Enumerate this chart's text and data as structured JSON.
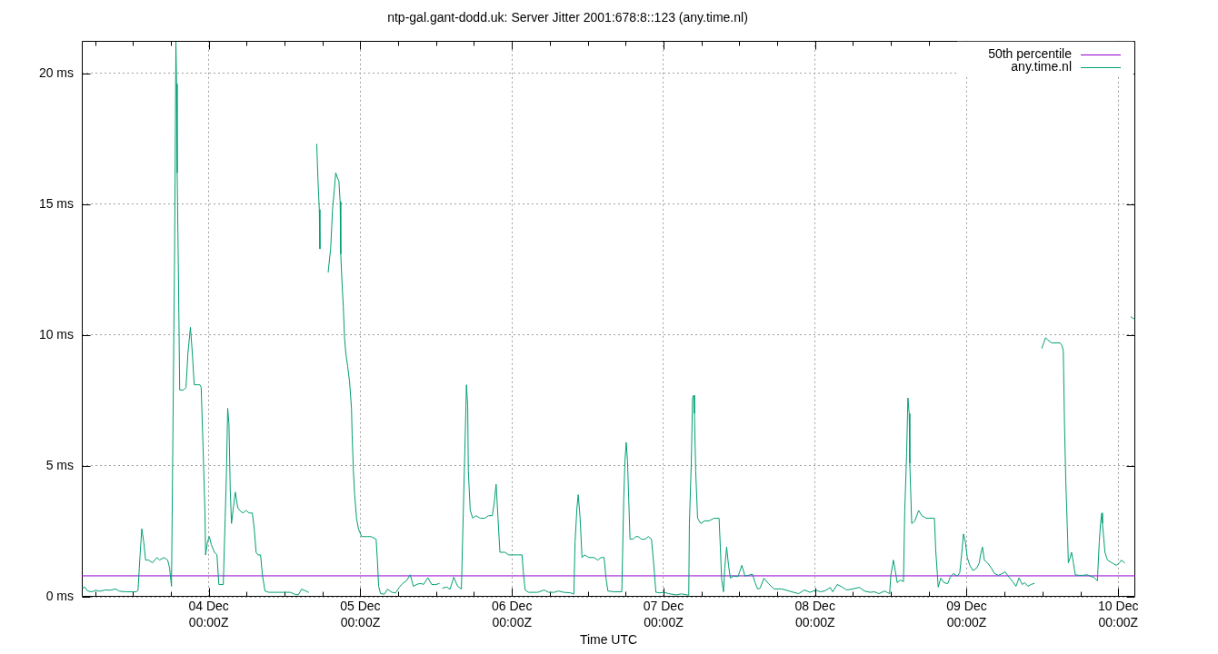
{
  "chart_data": {
    "type": "line",
    "title": "ntp-gal.gant-dodd.uk: Server Jitter 2001:678:8::123 (any.time.nl)",
    "xlabel": "Time UTC",
    "xlim": [
      "--12-03T03:54",
      "--12-10T02:42"
    ],
    "xticks": [
      {
        "value": "--12-03T06:00",
        "label": null
      },
      {
        "value": "--12-03T12:00",
        "label": null
      },
      {
        "value": "--12-03T18:00",
        "label": null
      },
      {
        "value": "--12-04T00:00",
        "label": "04 Dec\n00:00Z"
      },
      {
        "value": "--12-04T06:00",
        "label": null
      },
      {
        "value": "--12-04T12:00",
        "label": null
      },
      {
        "value": "--12-04T18:00",
        "label": null
      },
      {
        "value": "--12-05T00:00",
        "label": "05 Dec\n00:00Z"
      },
      {
        "value": "--12-05T06:00",
        "label": null
      },
      {
        "value": "--12-05T12:00",
        "label": null
      },
      {
        "value": "--12-05T18:00",
        "label": null
      },
      {
        "value": "--12-06T00:00",
        "label": "06 Dec\n00:00Z"
      },
      {
        "value": "--12-06T06:00",
        "label": null
      },
      {
        "value": "--12-06T12:00",
        "label": null
      },
      {
        "value": "--12-06T18:00",
        "label": null
      },
      {
        "value": "--12-07T00:00",
        "label": "07 Dec\n00:00Z"
      },
      {
        "value": "--12-07T06:00",
        "label": null
      },
      {
        "value": "--12-07T12:00",
        "label": null
      },
      {
        "value": "--12-07T18:00",
        "label": null
      },
      {
        "value": "--12-08T00:00",
        "label": "08 Dec\n00:00Z"
      },
      {
        "value": "--12-08T06:00",
        "label": null
      },
      {
        "value": "--12-08T12:00",
        "label": null
      },
      {
        "value": "--12-08T18:00",
        "label": null
      },
      {
        "value": "--12-09T00:00",
        "label": "09 Dec\n00:00Z"
      },
      {
        "value": "--12-09T06:00",
        "label": null
      },
      {
        "value": "--12-09T12:00",
        "label": null
      },
      {
        "value": "--12-09T18:00",
        "label": null
      },
      {
        "value": "--12-10T00:00",
        "label": "10 Dec\n00:00Z"
      }
    ],
    "ylim": [
      0,
      21.25
    ],
    "yticks": [
      {
        "value": 0,
        "label": "0 ms"
      },
      {
        "value": 5,
        "label": "5 ms"
      },
      {
        "value": 10,
        "label": "10 ms"
      },
      {
        "value": 15,
        "label": "15 ms"
      },
      {
        "value": 20,
        "label": "20 ms"
      }
    ],
    "grid": true,
    "legend": "top right",
    "series": [
      {
        "name": "50th percentile",
        "color": "#9400d3",
        "x": [
          "--12-03T03:54",
          "--12-10T02:42"
        ],
        "values": [
          0.8,
          0.8
        ]
      },
      {
        "name": "any.time.nl",
        "color": "#009e73",
        "x": [
          "--12-03T04:00",
          "--12-03T04:24",
          "--12-03T04:48",
          "--12-03T05:30",
          "--12-03T06:06",
          "--12-03T06:42",
          "--12-03T07:36",
          "--12-03T08:24",
          "--12-03T09:12",
          "--12-03T09:54",
          "--12-03T11:00",
          "--12-03T12:30",
          "--12-03T12:48",
          "--12-03T13:06",
          "--12-03T13:24",
          "--12-03T13:42",
          "--12-03T14:00",
          "--12-03T14:30",
          "--12-03T15:06",
          "--12-03T15:48",
          "--12-03T16:12",
          "--12-03T16:54",
          "--12-03T17:30",
          "--12-03T17:48",
          "--12-03T18:06",
          "--12-03T18:12",
          "--12-03T18:24",
          "--12-03T18:36",
          "--12-03T18:48",
          "--12-03T18:54",
          "--12-03T19:00",
          "--12-03T19:12",
          "--12-03T19:24",
          "--12-03T20:00",
          "--12-03T20:24",
          "--12-03T20:42",
          "--12-03T21:06",
          "--12-03T21:24",
          "--12-03T21:42",
          "--12-03T22:36",
          "--12-03T22:48",
          "--12-03T23:06",
          "--12-03T23:24",
          "--12-03T23:30",
          "--12-03T23:48",
          "--12-04T00:06",
          "--12-04T00:24",
          "--12-04T00:54",
          "--12-04T01:18",
          "--12-04T01:36",
          "--12-04T02:18",
          "--12-04T02:36",
          "--12-04T02:48",
          "--12-04T03:00",
          "--12-04T03:12",
          "--12-04T03:24",
          "--12-04T03:36",
          "--12-04T03:54",
          "--12-04T04:12",
          "--12-04T04:36",
          "--12-04T04:54",
          "--12-04T05:24",
          "--12-04T05:54",
          "--12-04T06:24",
          "--12-04T06:54",
          "--12-04T07:12",
          "--12-04T07:30",
          "--12-04T07:48",
          "--12-04T08:12",
          "--12-04T08:30",
          "--12-04T08:54",
          "--12-04T09:30",
          "--12-04T10:36",
          "--12-04T12:54",
          "--12-04T13:48",
          "--12-04T14:12",
          "--12-04T14:42",
          "--12-04T15:12",
          "--12-04T15:48",
          "--12-04T16:24",
          "--12-04T17:06",
          "--12-04T17:18",
          "--12-04T17:30",
          "--12-04T17:36",
          "--12-04T18:12",
          "--12-04T18:54",
          "--12-04T19:18",
          "--12-04T19:36",
          "--12-04T19:54",
          "--12-04T20:06",
          "--12-04T20:24",
          "--12-04T20:36",
          "--12-04T20:48",
          "--12-04T20:54",
          "--12-04T21:06",
          "--12-04T21:18",
          "--12-04T21:30",
          "--12-04T21:42",
          "--12-04T22:00",
          "--12-04T22:18",
          "--12-04T22:36",
          "--12-04T22:42",
          "--12-04T22:54",
          "--12-04T23:06",
          "--12-04T23:24",
          "--12-04T23:42",
          "--12-05T00:12",
          "--12-05T01:00",
          "--12-05T01:42",
          "--12-05T02:30",
          "--12-05T02:42",
          "--12-05T02:54",
          "--12-05T03:12",
          "--12-05T03:48",
          "--12-05T04:18",
          "--12-05T05:00",
          "--12-05T05:36",
          "--12-05T06:12",
          "--12-05T06:42",
          "--12-05T07:18",
          "--12-05T07:54",
          "--12-05T08:24",
          "--12-05T09:00",
          "--12-05T09:36",
          "--12-05T10:00",
          "--12-05T10:42",
          "--12-05T11:18",
          "--12-05T11:54",
          "--12-05T12:30",
          "--12-05T12:42",
          "--12-05T13:00",
          "--12-05T13:42",
          "--12-05T14:12",
          "--12-05T14:48",
          "--12-05T15:24",
          "--12-05T16:00",
          "--12-05T16:18",
          "--12-05T16:30",
          "--12-05T16:48",
          "--12-05T17:00",
          "--12-05T17:06",
          "--12-05T17:24",
          "--12-05T17:48",
          "--12-05T18:18",
          "--12-05T19:00",
          "--12-05T19:42",
          "--12-05T20:18",
          "--12-05T20:54",
          "--12-05T21:12",
          "--12-05T21:30",
          "--12-05T21:48",
          "--12-05T22:06",
          "--12-05T22:30",
          "--12-05T22:54",
          "--12-05T23:30",
          "--12-06T00:12",
          "--12-06T01:00",
          "--12-06T01:36",
          "--12-06T01:48",
          "--12-06T02:06",
          "--12-06T02:36",
          "--12-06T04:06",
          "--12-06T05:06",
          "--12-06T05:48",
          "--12-06T06:42",
          "--12-06T07:24",
          "--12-06T08:12",
          "--12-06T09:18",
          "--12-06T09:48",
          "--12-06T10:00",
          "--12-06T10:18",
          "--12-06T10:30",
          "--12-06T10:48",
          "--12-06T11:06",
          "--12-06T11:30",
          "--12-06T12:12",
          "--12-06T13:00",
          "--12-06T13:36",
          "--12-06T14:06",
          "--12-06T14:36",
          "--12-06T14:54",
          "--12-06T15:12",
          "--12-06T16:12",
          "--12-06T17:24",
          "--12-06T17:42",
          "--12-06T17:54",
          "--12-06T18:06",
          "--12-06T18:18",
          "--12-06T18:30",
          "--12-06T18:42",
          "--12-06T19:12",
          "--12-06T19:36",
          "--12-06T20:00",
          "--12-06T20:30",
          "--12-06T21:06",
          "--12-06T21:36",
          "--12-06T22:06",
          "--12-06T22:24",
          "--12-06T22:48",
          "--12-06T23:24",
          "--12-07T00:06",
          "--12-07T00:48",
          "--12-07T02:00",
          "--12-07T02:48",
          "--12-07T04:00",
          "--12-07T04:06",
          "--12-07T04:24",
          "--12-07T04:36",
          "--12-07T04:48",
          "--12-07T04:54",
          "--12-07T05:06",
          "--12-07T05:24",
          "--12-07T05:54",
          "--12-07T06:30",
          "--12-07T07:12",
          "--12-07T08:00",
          "--12-07T08:48",
          "--12-07T09:00",
          "--12-07T09:12",
          "--12-07T09:30",
          "--12-07T09:42",
          "--12-07T10:00",
          "--12-07T10:18",
          "--12-07T10:36",
          "--12-07T11:06",
          "--12-07T11:48",
          "--12-07T12:24",
          "--12-07T12:54",
          "--12-07T13:24",
          "--12-07T14:06",
          "--12-07T14:30",
          "--12-07T14:54",
          "--12-07T15:18",
          "--12-07T15:54",
          "--12-07T16:36",
          "--12-07T17:30",
          "--12-07T18:42",
          "--12-07T19:36",
          "--12-07T20:36",
          "--12-07T21:24",
          "--12-07T22:18",
          "--12-07T23:12",
          "--12-08T00:06",
          "--12-08T00:48",
          "--12-08T01:30",
          "--12-08T02:24",
          "--12-08T02:48",
          "--12-08T03:30",
          "--12-08T04:18",
          "--12-08T05:00",
          "--12-08T05:48",
          "--12-08T07:00",
          "--12-08T07:48",
          "--12-08T08:42",
          "--12-08T09:24",
          "--12-08T10:06",
          "--12-08T11:00",
          "--12-08T11:48",
          "--12-08T12:00",
          "--12-08T12:24",
          "--12-08T12:42",
          "--12-08T13:00",
          "--12-08T13:30",
          "--12-08T14:00",
          "--12-08T14:12",
          "--12-08T14:30",
          "--12-08T14:42",
          "--12-08T14:54",
          "--12-08T15:00",
          "--12-08T15:18",
          "--12-08T15:48",
          "--12-08T16:24",
          "--12-08T16:54",
          "--12-08T17:36",
          "--12-08T18:30",
          "--12-08T18:54",
          "--12-08T19:06",
          "--12-08T19:30",
          "--12-08T19:54",
          "--12-08T20:24",
          "--12-08T21:00",
          "--12-08T21:24",
          "--12-08T21:54",
          "--12-08T22:30",
          "--12-08T22:54",
          "--12-08T23:12",
          "--12-08T23:30",
          "--12-08T23:48",
          "--12-09T00:06",
          "--12-09T00:30",
          "--12-09T01:00",
          "--12-09T01:36",
          "--12-09T02:00",
          "--12-09T02:12",
          "--12-09T02:30",
          "--12-09T02:48",
          "--12-09T03:18",
          "--12-09T03:54",
          "--12-09T04:24",
          "--12-09T05:00",
          "--12-09T05:24",
          "--12-09T06:06",
          "--12-09T06:42",
          "--12-09T07:18",
          "--12-09T07:48",
          "--12-09T08:18",
          "--12-09T08:48",
          "--12-09T09:12",
          "--12-09T09:42",
          "--12-09T10:12",
          "--12-09T10:42",
          "--12-09T11:18",
          "--12-09T11:54",
          "--12-09T12:12",
          "--12-09T12:30",
          "--12-09T12:54",
          "--12-09T13:30",
          "--12-09T14:12",
          "--12-09T14:48",
          "--12-09T15:06",
          "--12-09T15:18",
          "--12-09T15:30",
          "--12-09T15:42",
          "--12-09T16:00",
          "--12-09T16:06",
          "--12-09T16:24",
          "--12-09T16:36",
          "--12-09T16:54",
          "--12-09T17:12",
          "--12-09T17:48",
          "--12-09T18:24",
          "--12-09T19:06",
          "--12-09T19:30",
          "--12-09T20:06",
          "--12-09T20:42",
          "--12-09T21:00",
          "--12-09T21:12",
          "--12-09T21:24",
          "--12-09T21:30",
          "--12-09T21:54",
          "--12-09T22:18",
          "--12-09T23:00",
          "--12-09T23:42",
          "--12-10T00:12",
          "--12-10T00:30",
          "--12-10T01:00",
          "--12-10T01:36",
          "--12-10T02:00",
          "--12-10T02:36"
        ],
        "values": [
          0.33,
          0.37,
          0.22,
          0.19,
          0.25,
          0.21,
          0.26,
          0.25,
          0.3,
          0.21,
          0.19,
          0.19,
          0.24,
          1.5,
          2.6,
          2.1,
          1.4,
          1.4,
          1.3,
          1.5,
          1.4,
          1.5,
          1.4,
          1.1,
          0.4,
          3.0,
          8.2,
          13.4,
          21.2,
          19.6,
          16.2,
          12.3,
          7.9,
          7.9,
          8.0,
          9.3,
          10.3,
          9.3,
          8.1,
          8.1,
          8.0,
          5.7,
          3.2,
          1.6,
          2.1,
          2.3,
          2.0,
          1.7,
          1.6,
          0.47,
          0.47,
          3.0,
          4.7,
          7.2,
          6.6,
          4.1,
          2.8,
          3.4,
          4.0,
          3.4,
          3.3,
          3.2,
          3.3,
          3.2,
          3.2,
          2.6,
          1.7,
          1.6,
          1.6,
          0.82,
          0.22,
          0.17,
          0.17,
          0.17,
          0.08,
          0.08,
          0.29,
          0.24,
          0.17,
          null,
          17.3,
          15.9,
          14.8,
          13.3,
          null,
          12.4,
          13.3,
          14.8,
          15.6,
          16.2,
          16.0,
          15.9,
          15.1,
          13.1,
          12.0,
          11.1,
          9.9,
          9.3,
          8.8,
          8.2,
          7.2,
          6.2,
          4.8,
          3.9,
          3.0,
          2.6,
          2.3,
          2.3,
          2.3,
          2.2,
          1.4,
          0.4,
          0.12,
          0.1,
          0.29,
          0.17,
          0.15,
          0.37,
          0.51,
          0.61,
          0.84,
          0.4,
          0.48,
          0.51,
          0.47,
          0.73,
          0.47,
          0.46,
          0.51,
          null,
          0.33,
          0.37,
          0.29,
          0.75,
          0.4,
          0.3,
          3.2,
          5.1,
          8.1,
          7.3,
          4.8,
          3.3,
          3.0,
          3.1,
          3.0,
          3.0,
          3.1,
          3.1,
          3.6,
          4.3,
          3.0,
          1.7,
          1.7,
          1.7,
          1.6,
          1.6,
          1.6,
          1.6,
          0.95,
          0.26,
          0.17,
          0.17,
          0.26,
          0.17,
          0.17,
          0.22,
          0.17,
          0.15,
          0.1,
          2.1,
          3.4,
          3.9,
          3.0,
          1.5,
          1.6,
          1.5,
          1.5,
          1.4,
          1.5,
          1.5,
          0.7,
          0.22,
          0.19,
          0.19,
          3.7,
          5.2,
          5.9,
          5.2,
          3.7,
          2.2,
          2.2,
          2.3,
          2.3,
          2.2,
          2.2,
          2.3,
          2.2,
          1.4,
          0.17,
          0.15,
          0.17,
          0.12,
          0.07,
          0.11,
          0.06,
          2.8,
          5.1,
          7.6,
          7.7,
          7.0,
          4.8,
          3.0,
          2.8,
          2.9,
          2.9,
          3.0,
          3.0,
          1.9,
          0.68,
          0.19,
          1.1,
          1.9,
          1.2,
          0.71,
          0.79,
          0.77,
          1.2,
          0.79,
          0.82,
          0.86,
          0.54,
          0.3,
          0.33,
          0.71,
          0.51,
          0.3,
          0.3,
          0.24,
          0.17,
          0.12,
          0.26,
          0.17,
          0.26,
          0.19,
          0.22,
          0.35,
          0.19,
          0.47,
          0.37,
          0.26,
          0.29,
          0.36,
          0.22,
          0.17,
          0.19,
          0.12,
          0.22,
          0.12,
          0.82,
          1.4,
          1.0,
          0.54,
          0.64,
          0.58,
          3.3,
          5.5,
          7.6,
          7.0,
          5.1,
          2.8,
          2.9,
          3.3,
          3.1,
          3.0,
          3.0,
          3.0,
          1.8,
          0.37,
          0.71,
          0.54,
          0.5,
          0.75,
          0.89,
          0.79,
          0.91,
          1.6,
          2.4,
          2.1,
          1.5,
          1.2,
          1.0,
          1.1,
          1.3,
          1.6,
          1.9,
          1.4,
          1.3,
          1.1,
          0.89,
          0.82,
          0.86,
          0.95,
          0.75,
          0.58,
          0.4,
          0.72,
          0.47,
          0.54,
          0.4,
          0.47,
          0.51,
          null,
          9.5,
          9.7,
          9.9,
          9.8,
          9.7,
          9.7,
          9.7,
          9.6,
          9.4,
          6.5,
          4.4,
          2.2,
          1.3,
          1.5,
          1.7,
          1.3,
          0.84,
          0.82,
          0.82,
          0.84,
          0.79,
          0.75,
          0.61,
          2.1,
          2.8,
          3.2,
          2.8,
          1.7,
          1.4,
          1.3,
          1.2,
          1.3,
          1.4,
          1.3,
          null,
          10.7,
          10.6
        ]
      }
    ]
  }
}
